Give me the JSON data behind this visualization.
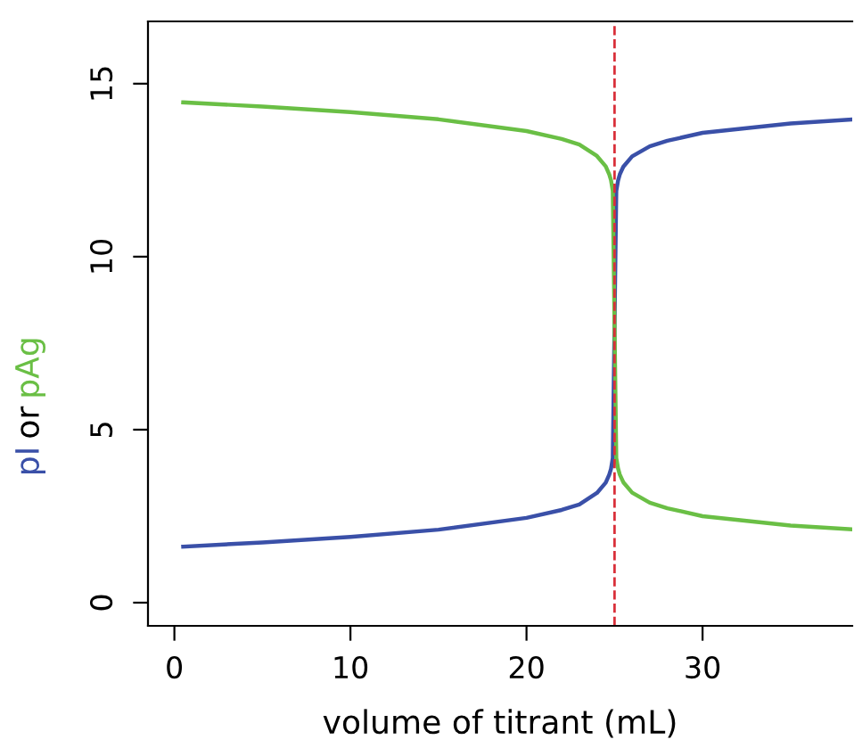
{
  "chart_data": {
    "type": "line",
    "xlabel": "volume of titrant (mL)",
    "ylabel": "or",
    "series": [
      {
        "name": "pI",
        "color": "#3a50a8",
        "x": [
          0.5,
          5,
          10,
          15,
          20,
          22,
          23,
          24,
          24.5,
          24.7,
          24.8,
          24.9,
          25,
          25.1,
          25.2,
          25.3,
          25.5,
          26,
          27,
          28,
          30,
          35,
          38.4
        ],
        "values": [
          1.62,
          1.74,
          1.9,
          2.11,
          2.45,
          2.68,
          2.84,
          3.17,
          3.47,
          3.7,
          3.87,
          4.18,
          8.04,
          11.9,
          12.2,
          12.38,
          12.6,
          12.9,
          13.19,
          13.35,
          13.58,
          13.85,
          13.96
        ]
      },
      {
        "name": "pAg",
        "color": "#6abf45",
        "x": [
          0.5,
          5,
          10,
          15,
          20,
          22,
          23,
          24,
          24.5,
          24.7,
          24.8,
          24.9,
          25,
          25.1,
          25.2,
          25.3,
          25.5,
          26,
          27,
          28,
          30,
          35,
          38.4
        ],
        "values": [
          14.46,
          14.34,
          14.18,
          13.97,
          13.63,
          13.4,
          13.24,
          12.91,
          12.61,
          12.38,
          12.21,
          11.9,
          8.04,
          4.18,
          3.88,
          3.7,
          3.48,
          3.18,
          2.89,
          2.73,
          2.5,
          2.23,
          2.12
        ]
      }
    ],
    "ref_lines": [
      {
        "axis": "x",
        "value": 25,
        "color": "#d9303a",
        "line_style": "dashed"
      }
    ],
    "xlim": [
      -1.5,
      38.5
    ],
    "ylim": [
      -0.67,
      16.8
    ],
    "xticks": [
      0,
      10,
      20,
      30
    ],
    "yticks": [
      0,
      5,
      10,
      15
    ],
    "grid": false,
    "legend": false,
    "marker": "none",
    "line_style": "solid"
  }
}
